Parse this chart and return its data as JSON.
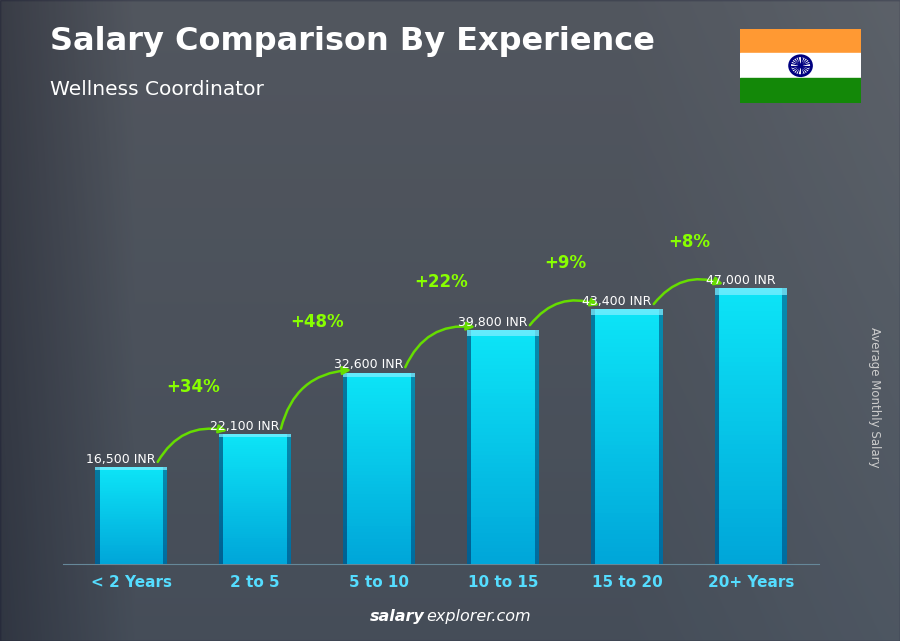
{
  "title": "Salary Comparison By Experience",
  "subtitle": "Wellness Coordinator",
  "categories": [
    "< 2 Years",
    "2 to 5",
    "5 to 10",
    "10 to 15",
    "15 to 20",
    "20+ Years"
  ],
  "values": [
    16500,
    22100,
    32600,
    39800,
    43400,
    47000
  ],
  "labels": [
    "16,500 INR",
    "22,100 INR",
    "32,600 INR",
    "39,800 INR",
    "43,400 INR",
    "47,000 INR"
  ],
  "pct_changes": [
    "+34%",
    "+48%",
    "+22%",
    "+9%",
    "+8%"
  ],
  "bar_color_bright": "#00cfff",
  "bar_color_mid": "#00aadd",
  "bar_color_dark": "#0077bb",
  "bar_color_edge_dark": "#005599",
  "bg_color_light": "#8a9aa8",
  "bg_color_dark": "#5a6a70",
  "text_color_white": "#ffffff",
  "text_color_cyan": "#55ddff",
  "pct_color": "#88ff00",
  "pct_arrow_color": "#66dd00",
  "footer_bold_color": "#ffffff",
  "footer_normal_color": "#ccddee",
  "ylabel": "Average Monthly Salary",
  "ylabel_color": "#cccccc",
  "figsize": [
    9.0,
    6.41
  ],
  "dpi": 100,
  "bar_width": 0.58,
  "ylim_max": 60000,
  "flag_saffron": "#FF9933",
  "flag_white": "#FFFFFF",
  "flag_green": "#138808",
  "flag_chakra": "#000080"
}
